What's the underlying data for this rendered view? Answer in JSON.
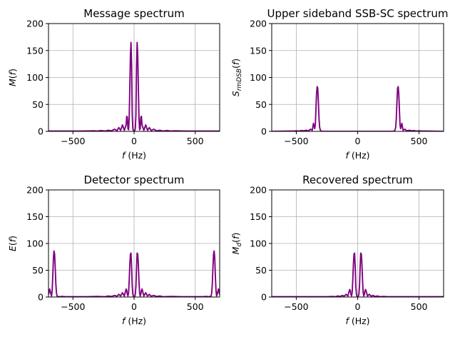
{
  "chart_data": [
    {
      "type": "line",
      "title": "Message spectrum",
      "xlabel": "f (Hz)",
      "ylabel": "M(f)",
      "xlim": [
        -700,
        700
      ],
      "ylim": [
        0,
        200
      ],
      "xticks": [
        -500,
        0,
        500
      ],
      "yticks": [
        0,
        50,
        100,
        150,
        200
      ],
      "grid": true,
      "color": "#800080",
      "series": [
        {
          "x": [
            -700,
            -450,
            -330,
            -300,
            -270,
            -240,
            -210,
            -185,
            -160,
            -140,
            -125,
            -110,
            -95,
            -80,
            -65,
            -60,
            -55,
            -50,
            -45,
            -40,
            -35,
            -30,
            -25,
            -20,
            -15,
            -10,
            -5,
            0,
            5,
            10,
            15,
            20,
            25,
            30,
            35,
            40,
            45,
            50,
            55,
            60,
            65,
            80,
            95,
            110,
            125,
            140,
            160,
            185,
            210,
            240,
            270,
            300,
            330,
            450,
            700
          ],
          "y": [
            0.5,
            0.5,
            1,
            0.5,
            1.5,
            0.5,
            2,
            1,
            4,
            1.5,
            7,
            2,
            12,
            2,
            12,
            28,
            26,
            5,
            3,
            25,
            80,
            140,
            165,
            120,
            30,
            5,
            1,
            0,
            1,
            5,
            30,
            120,
            165,
            140,
            80,
            25,
            3,
            5,
            26,
            28,
            12,
            2,
            12,
            2,
            7,
            1.5,
            4,
            1,
            2,
            0.5,
            1.5,
            0.5,
            1,
            0.5,
            0.5
          ]
        }
      ]
    },
    {
      "type": "line",
      "title": "Upper sideband SSB-SC spectrum",
      "xlabel": "f (Hz)",
      "ylabel": "S_rmDSB(f)",
      "xlim": [
        -700,
        700
      ],
      "ylim": [
        0,
        200
      ],
      "xticks": [
        -500,
        0,
        500
      ],
      "yticks": [
        0,
        50,
        100,
        150,
        200
      ],
      "grid": true,
      "color": "#800080",
      "series": [
        {
          "x": [
            -700,
            -560,
            -520,
            -500,
            -480,
            -460,
            -440,
            -420,
            -400,
            -385,
            -370,
            -360,
            -355,
            -350,
            -345,
            -340,
            -335,
            -330,
            -325,
            -320,
            -315,
            -310,
            -305,
            -300,
            -290,
            -200,
            200,
            290,
            300,
            305,
            310,
            315,
            320,
            325,
            330,
            335,
            340,
            345,
            350,
            355,
            360,
            370,
            385,
            400,
            420,
            440,
            460,
            480,
            500,
            520,
            560,
            700
          ],
          "y": [
            0,
            0.5,
            0.5,
            1,
            0.5,
            1.5,
            1,
            2,
            1,
            4,
            2,
            15,
            10,
            5,
            12,
            40,
            70,
            83,
            80,
            55,
            25,
            8,
            3,
            1,
            0,
            0,
            0,
            0,
            1,
            3,
            8,
            25,
            55,
            80,
            83,
            70,
            40,
            12,
            5,
            10,
            15,
            2,
            4,
            1,
            2,
            1,
            1.5,
            0.5,
            1,
            0.5,
            0.5,
            0
          ]
        }
      ]
    },
    {
      "type": "line",
      "title": "Detector spectrum",
      "xlabel": "f (Hz)",
      "ylabel": "E(f)",
      "xlim": [
        -700,
        700
      ],
      "ylim": [
        0,
        200
      ],
      "xticks": [
        -500,
        0,
        500
      ],
      "yticks": [
        0,
        50,
        100,
        150,
        200
      ],
      "grid": true,
      "color": "#800080",
      "series": [
        {
          "x": [
            -700,
            -690,
            -680,
            -675,
            -670,
            -665,
            -660,
            -655,
            -650,
            -645,
            -640,
            -635,
            -630,
            -625,
            -620,
            -610,
            -590,
            -560,
            -500,
            -400,
            -300,
            -240,
            -210,
            -185,
            -160,
            -140,
            -125,
            -110,
            -95,
            -80,
            -65,
            -60,
            -55,
            -50,
            -45,
            -40,
            -35,
            -30,
            -25,
            -20,
            -15,
            -10,
            -5,
            0,
            5,
            10,
            15,
            20,
            25,
            30,
            35,
            40,
            45,
            50,
            55,
            60,
            65,
            80,
            95,
            110,
            125,
            140,
            160,
            185,
            210,
            240,
            300,
            400,
            500,
            560,
            590,
            610,
            620,
            625,
            630,
            635,
            640,
            645,
            650,
            655,
            660,
            665,
            670,
            675,
            680,
            690,
            700
          ],
          "y": [
            5,
            15,
            5,
            2,
            12,
            38,
            72,
            86,
            80,
            55,
            25,
            8,
            2,
            0.5,
            1,
            0.5,
            1,
            0.5,
            0.5,
            0.5,
            1,
            0.5,
            2,
            1,
            3,
            1.5,
            5,
            2,
            8,
            2,
            15,
            12,
            5,
            2,
            8,
            30,
            60,
            80,
            82,
            55,
            20,
            5,
            1,
            0,
            1,
            5,
            20,
            55,
            82,
            80,
            60,
            30,
            8,
            2,
            5,
            12,
            15,
            2,
            8,
            2,
            5,
            1.5,
            3,
            1,
            2,
            0.5,
            1,
            0.5,
            0.5,
            0.5,
            1,
            0.5,
            1,
            0.5,
            2,
            8,
            25,
            55,
            80,
            86,
            72,
            38,
            12,
            2,
            5,
            15,
            5
          ]
        }
      ]
    },
    {
      "type": "line",
      "title": "Recovered spectrum",
      "xlabel": "f (Hz)",
      "ylabel": "M_d(f)",
      "xlim": [
        -700,
        700
      ],
      "ylim": [
        0,
        200
      ],
      "xticks": [
        -500,
        0,
        500
      ],
      "yticks": [
        0,
        50,
        100,
        150,
        200
      ],
      "grid": true,
      "color": "#800080",
      "series": [
        {
          "x": [
            -700,
            -300,
            -240,
            -210,
            -185,
            -160,
            -140,
            -125,
            -110,
            -95,
            -80,
            -65,
            -60,
            -55,
            -50,
            -45,
            -40,
            -35,
            -30,
            -25,
            -20,
            -15,
            -10,
            -5,
            0,
            5,
            10,
            15,
            20,
            25,
            30,
            35,
            40,
            45,
            50,
            55,
            60,
            65,
            80,
            95,
            110,
            125,
            140,
            160,
            185,
            210,
            240,
            300,
            700
          ],
          "y": [
            0.5,
            0.5,
            0.5,
            1,
            0.5,
            2,
            1,
            3,
            1.5,
            5,
            2,
            14,
            12,
            5,
            2,
            8,
            30,
            60,
            80,
            82,
            55,
            20,
            5,
            1,
            0,
            1,
            5,
            20,
            55,
            82,
            80,
            60,
            30,
            8,
            2,
            5,
            12,
            14,
            2,
            5,
            1.5,
            3,
            1,
            2,
            0.5,
            1,
            0.5,
            0.5,
            0.5
          ]
        }
      ]
    }
  ]
}
